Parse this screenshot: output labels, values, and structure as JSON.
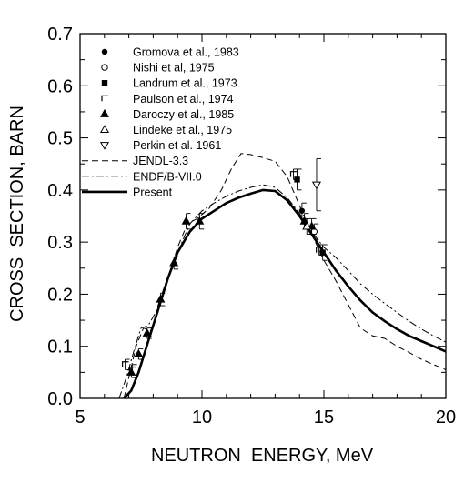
{
  "chart_data": {
    "type": "scatter",
    "title": "",
    "xlabel": "NEUTRON  ENERGY, MeV",
    "ylabel": "CROSS  SECTION, BARN",
    "xlim": [
      5,
      20
    ],
    "ylim": [
      0.0,
      0.7
    ],
    "x_ticks": [
      "5",
      "10",
      "15",
      "20"
    ],
    "y_ticks": [
      "0.0",
      "0.1",
      "0.2",
      "0.3",
      "0.4",
      "0.5",
      "0.6",
      "0.7"
    ],
    "grid": false,
    "legend_position": "top-left",
    "series": [
      {
        "name": "Gromova et al., 1983",
        "marker": "filled-circle",
        "points": [
          {
            "x": 14.1,
            "y": 0.36,
            "err": 0.015
          }
        ]
      },
      {
        "name": "Nishi et al, 1975",
        "marker": "open-circle",
        "points": [
          {
            "x": 14.6,
            "y": 0.32,
            "err": 0.015
          }
        ]
      },
      {
        "name": "Landrum et al., 1973",
        "marker": "filled-square",
        "points": [
          {
            "x": 13.9,
            "y": 0.42,
            "err": 0.02
          },
          {
            "x": 14.95,
            "y": 0.28,
            "err": 0.015
          }
        ]
      },
      {
        "name": "Paulson et al., 1974",
        "marker": "corner",
        "points": [
          {
            "x": 6.85,
            "y": 0.065,
            "err": 0.01
          },
          {
            "x": 7.15,
            "y": 0.055,
            "err": 0.01
          },
          {
            "x": 13.75,
            "y": 0.43,
            "err": 0.01
          },
          {
            "x": 14.8,
            "y": 0.285,
            "err": 0.01
          }
        ]
      },
      {
        "name": "Daroczy et al., 1985",
        "marker": "filled-triangle",
        "points": [
          {
            "x": 7.1,
            "y": 0.05,
            "err": 0.01
          },
          {
            "x": 7.4,
            "y": 0.085,
            "err": 0.01
          },
          {
            "x": 7.75,
            "y": 0.125,
            "err": 0.01
          },
          {
            "x": 8.3,
            "y": 0.19,
            "err": 0.012
          },
          {
            "x": 8.85,
            "y": 0.26,
            "err": 0.012
          },
          {
            "x": 9.35,
            "y": 0.34,
            "err": 0.015
          },
          {
            "x": 9.9,
            "y": 0.34,
            "err": 0.015
          },
          {
            "x": 14.2,
            "y": 0.34,
            "err": 0.015
          },
          {
            "x": 14.5,
            "y": 0.33,
            "err": 0.015
          }
        ]
      },
      {
        "name": "Lindeke et al., 1975",
        "marker": "open-triangle",
        "points": [
          {
            "x": 14.3,
            "y": 0.33,
            "err": 0.015
          }
        ]
      },
      {
        "name": "Perkin et al. 1961",
        "marker": "open-triangle-down",
        "points": [
          {
            "x": 14.7,
            "y": 0.41,
            "err": 0.05
          }
        ]
      },
      {
        "name": "JENDL-3.3",
        "style": "dashed",
        "points": [
          [
            6.8,
            0.0
          ],
          [
            7.0,
            0.04
          ],
          [
            7.3,
            0.1
          ],
          [
            7.6,
            0.135
          ],
          [
            7.9,
            0.13
          ],
          [
            8.2,
            0.17
          ],
          [
            8.6,
            0.23
          ],
          [
            9.0,
            0.29
          ],
          [
            9.4,
            0.335
          ],
          [
            9.8,
            0.345
          ],
          [
            10.3,
            0.365
          ],
          [
            10.8,
            0.4
          ],
          [
            11.2,
            0.44
          ],
          [
            11.6,
            0.47
          ],
          [
            12.0,
            0.468
          ],
          [
            12.5,
            0.462
          ],
          [
            13.0,
            0.455
          ],
          [
            13.5,
            0.425
          ],
          [
            14.0,
            0.37
          ],
          [
            14.5,
            0.315
          ],
          [
            15.0,
            0.265
          ],
          [
            15.5,
            0.225
          ],
          [
            16.0,
            0.18
          ],
          [
            16.5,
            0.135
          ],
          [
            17.0,
            0.12
          ],
          [
            17.5,
            0.115
          ],
          [
            18.0,
            0.1
          ],
          [
            18.5,
            0.088
          ],
          [
            19.0,
            0.075
          ],
          [
            19.5,
            0.065
          ],
          [
            20.0,
            0.055
          ]
        ]
      },
      {
        "name": "ENDF/B-VII.0",
        "style": "dash-dot",
        "points": [
          [
            6.6,
            0.0
          ],
          [
            6.9,
            0.04
          ],
          [
            7.2,
            0.09
          ],
          [
            7.5,
            0.135
          ],
          [
            7.8,
            0.14
          ],
          [
            8.1,
            0.165
          ],
          [
            8.5,
            0.22
          ],
          [
            9.0,
            0.28
          ],
          [
            9.5,
            0.335
          ],
          [
            10.0,
            0.36
          ],
          [
            10.5,
            0.375
          ],
          [
            11.0,
            0.388
          ],
          [
            11.5,
            0.398
          ],
          [
            12.0,
            0.405
          ],
          [
            12.5,
            0.41
          ],
          [
            13.0,
            0.405
          ],
          [
            13.5,
            0.385
          ],
          [
            14.0,
            0.355
          ],
          [
            14.5,
            0.32
          ],
          [
            15.0,
            0.29
          ],
          [
            15.5,
            0.27
          ],
          [
            16.0,
            0.245
          ],
          [
            16.5,
            0.22
          ],
          [
            17.0,
            0.2
          ],
          [
            17.5,
            0.182
          ],
          [
            18.0,
            0.165
          ],
          [
            18.5,
            0.148
          ],
          [
            19.0,
            0.133
          ],
          [
            19.5,
            0.12
          ],
          [
            20.0,
            0.108
          ]
        ]
      },
      {
        "name": "Present",
        "style": "thick-solid",
        "points": [
          [
            6.8,
            0.0
          ],
          [
            7.1,
            0.015
          ],
          [
            7.4,
            0.05
          ],
          [
            7.8,
            0.11
          ],
          [
            8.2,
            0.17
          ],
          [
            8.6,
            0.23
          ],
          [
            9.0,
            0.28
          ],
          [
            9.5,
            0.32
          ],
          [
            10.0,
            0.345
          ],
          [
            10.5,
            0.36
          ],
          [
            11.0,
            0.375
          ],
          [
            11.5,
            0.385
          ],
          [
            12.0,
            0.393
          ],
          [
            12.5,
            0.4
          ],
          [
            13.0,
            0.398
          ],
          [
            13.5,
            0.38
          ],
          [
            14.0,
            0.35
          ],
          [
            14.5,
            0.315
          ],
          [
            15.0,
            0.28
          ],
          [
            15.5,
            0.245
          ],
          [
            16.0,
            0.215
          ],
          [
            16.5,
            0.188
          ],
          [
            17.0,
            0.165
          ],
          [
            17.5,
            0.148
          ],
          [
            18.0,
            0.133
          ],
          [
            18.5,
            0.12
          ],
          [
            19.0,
            0.11
          ],
          [
            19.5,
            0.1
          ],
          [
            20.0,
            0.09
          ]
        ]
      }
    ]
  }
}
